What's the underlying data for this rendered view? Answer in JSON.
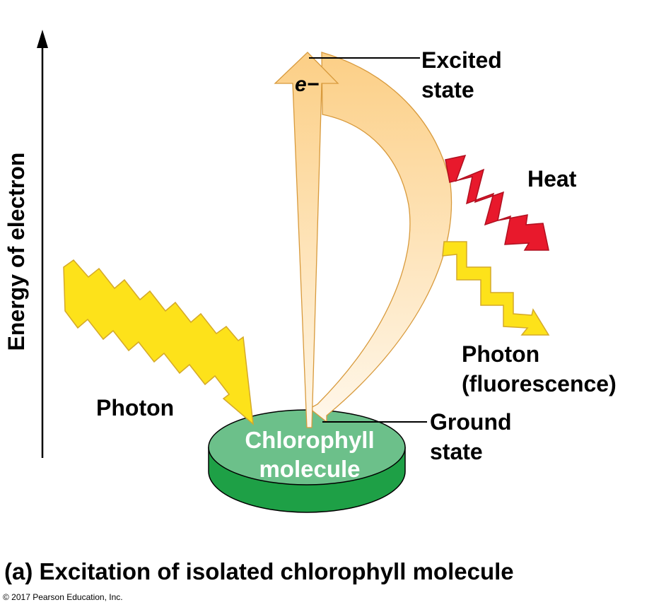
{
  "figure": {
    "axis_label": "Energy of electron",
    "electron_label": "e−",
    "excited_state": [
      "Excited",
      "state"
    ],
    "heat": "Heat",
    "photon_in": "Photon",
    "photon_out": [
      "Photon",
      "(fluorescence)"
    ],
    "ground_state": [
      "Ground",
      "state"
    ],
    "chlorophyll": [
      "Chlorophyll",
      "molecule"
    ],
    "caption": "(a) Excitation of isolated chlorophyll molecule",
    "copyright": "© 2017 Pearson Education, Inc."
  },
  "colors": {
    "disk_top": "#6cc08a",
    "disk_side": "#1ea046",
    "arrow_light": "#fdebc8",
    "arrow_dark": "#fccf86",
    "arrow_stroke": "#d89a3c",
    "photon_fill": "#fde21a",
    "photon_stroke": "#d4a92a",
    "heat_fill": "#e8192c",
    "heat_stroke": "#b01020"
  }
}
